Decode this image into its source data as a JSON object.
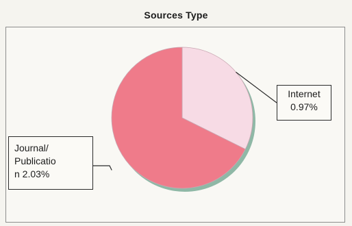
{
  "chart_data": {
    "type": "pie",
    "title": "Sources Type",
    "slices": [
      {
        "name": "Internet",
        "value": 0.97,
        "value_label": "0.97%",
        "color": "#f7dbe5"
      },
      {
        "name": "Journal/ Publication",
        "value": 2.03,
        "value_label": "2.03%",
        "color": "#ef7b8a"
      }
    ],
    "legend": "none",
    "data_labels": "callout boxes with category name and value"
  },
  "labels": {
    "internet_line1": "Internet",
    "internet_line2": "0.97%",
    "journal_line1": "Journal/",
    "journal_line2": "Publicatio",
    "journal_line3": "n 2.03%"
  },
  "colors": {
    "pie_edge_shadow": "#8fb8a6",
    "background": "#f5f4ef"
  }
}
